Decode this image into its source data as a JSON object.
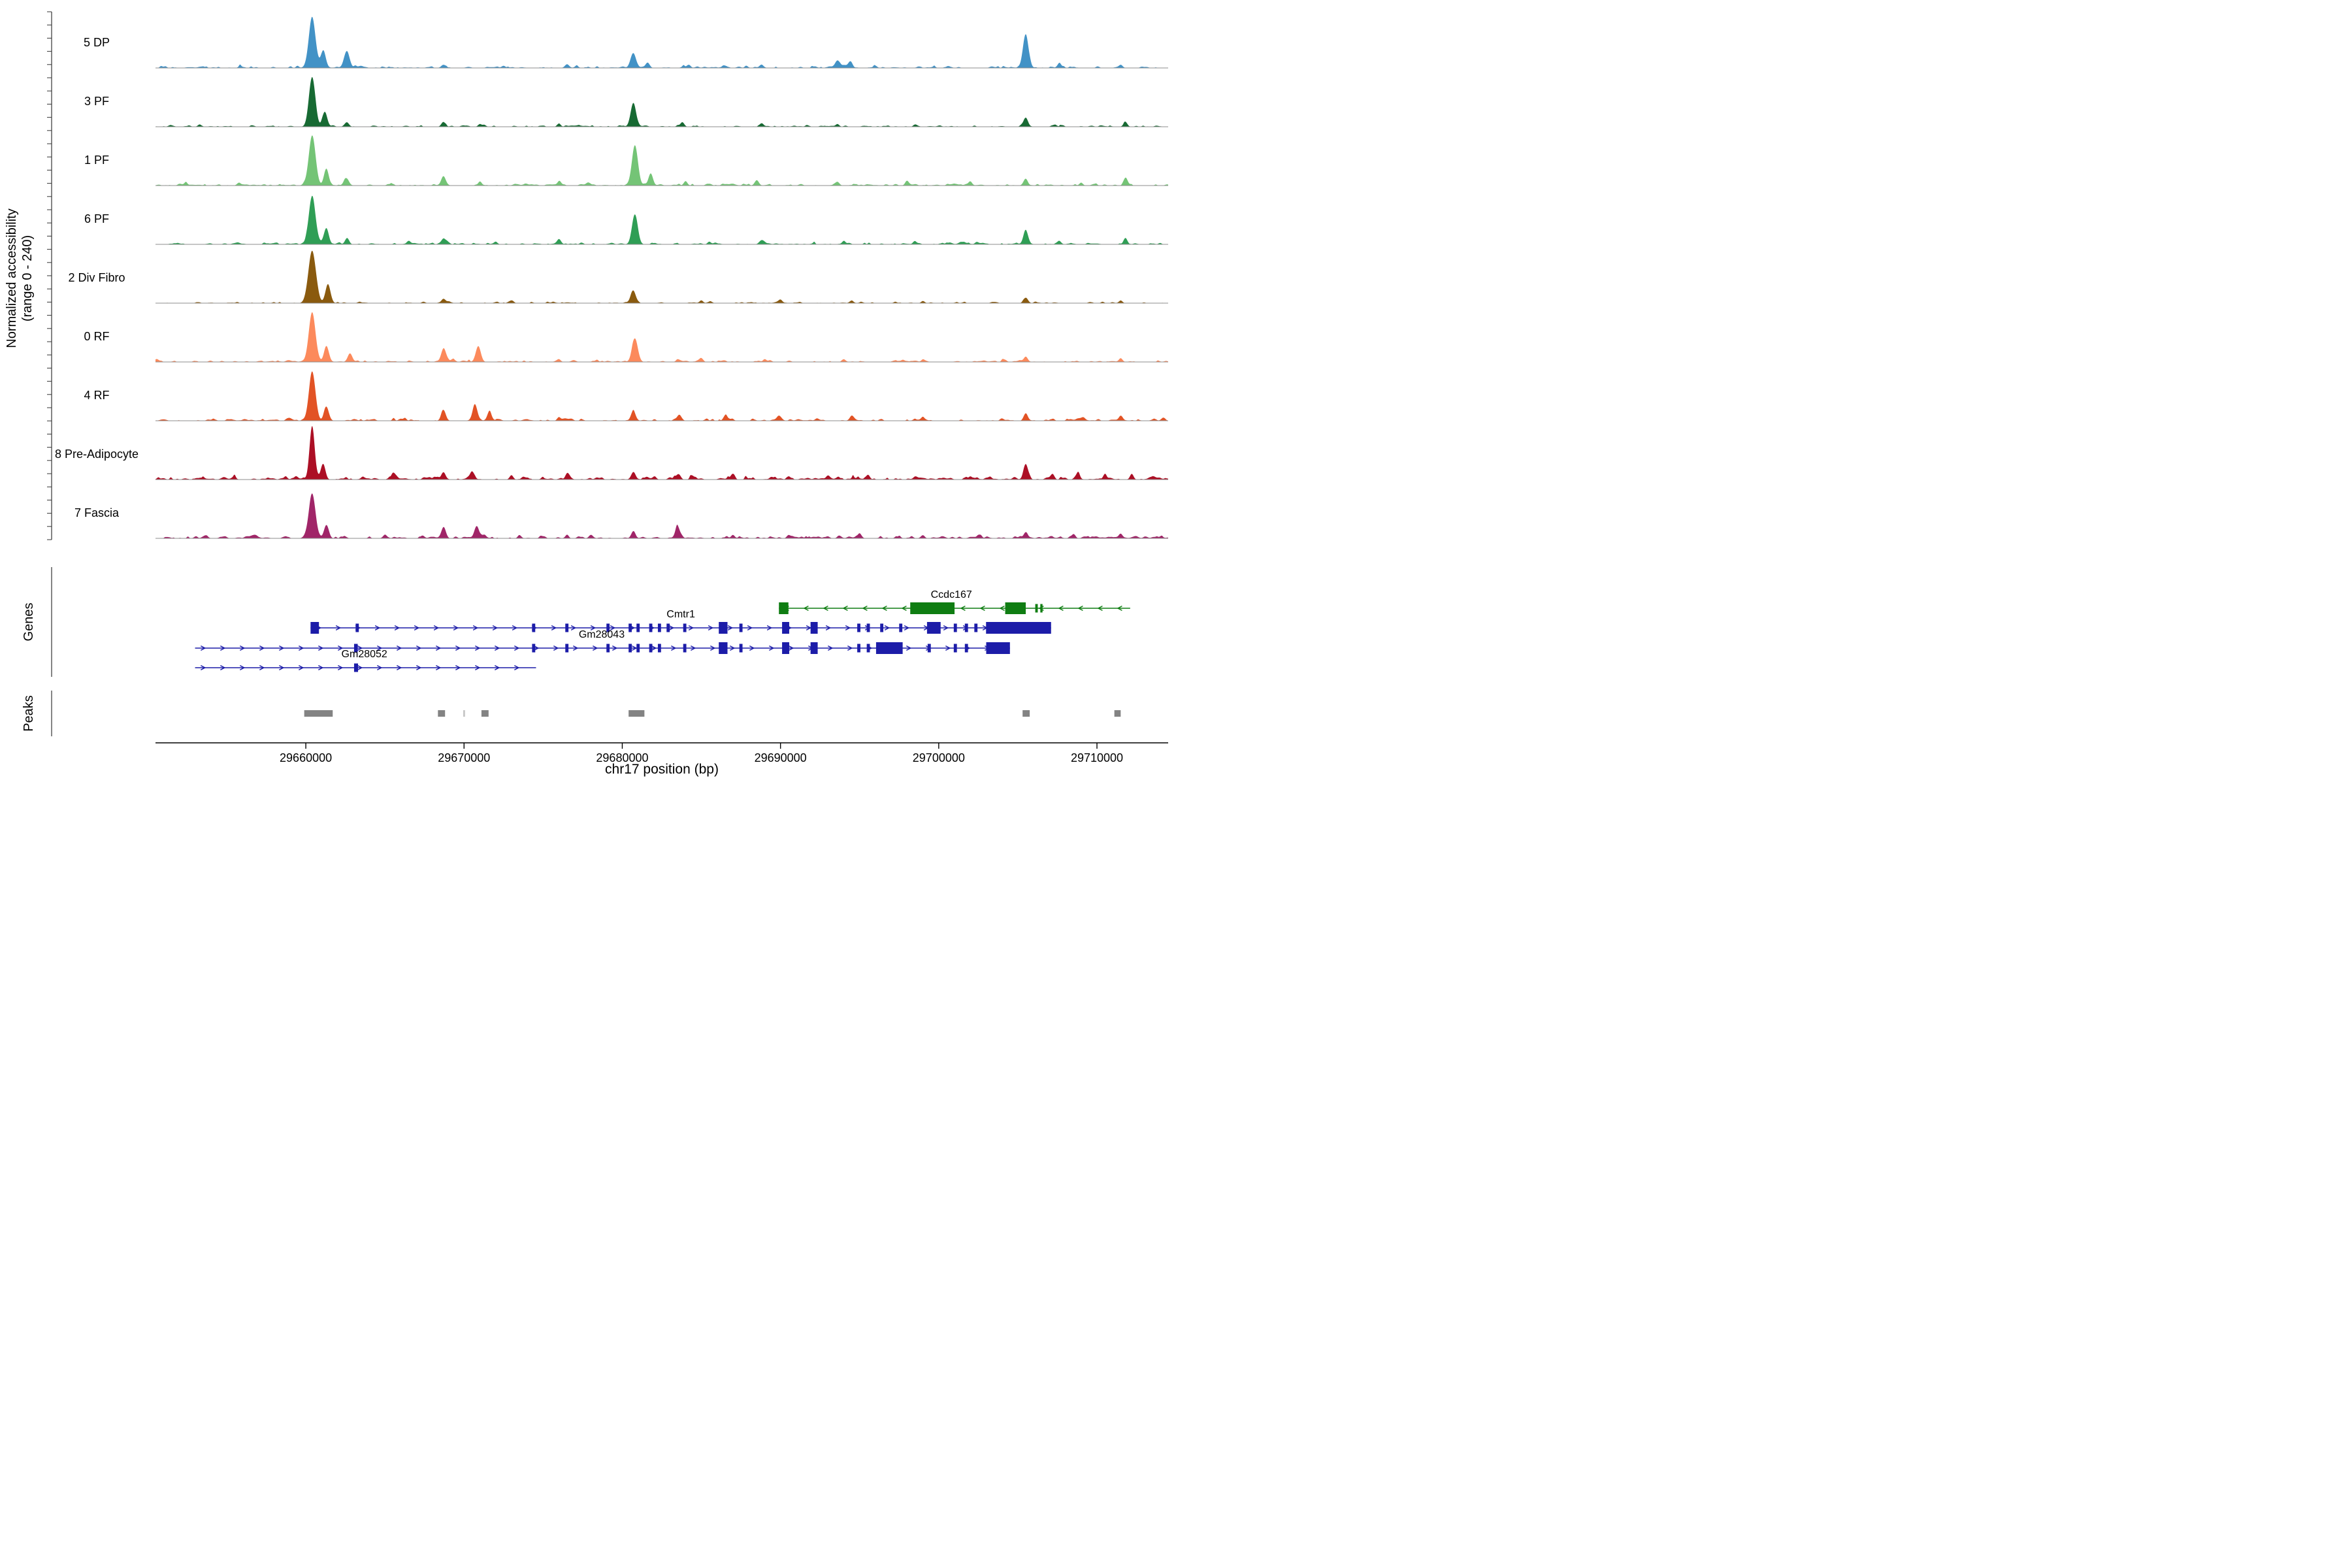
{
  "chart_data": {
    "type": "area",
    "subtype": "genome-coverage-tracks",
    "title": "",
    "xlabel": "chr17 position (bp)",
    "ylabel_line1": "Normalized accessibility",
    "ylabel_line2": "(range 0 - 240)",
    "y_range": [
      0,
      240
    ],
    "region": {
      "chrom": "chr17",
      "start_bp": 29650500,
      "end_bp": 29714500
    },
    "x_ticks": [
      {
        "bp": 29660000,
        "label": "29660000"
      },
      {
        "bp": 29670000,
        "label": "29670000"
      },
      {
        "bp": 29680000,
        "label": "29680000"
      },
      {
        "bp": 29690000,
        "label": "29690000"
      },
      {
        "bp": 29700000,
        "label": "29700000"
      },
      {
        "bp": 29710000,
        "label": "29710000"
      }
    ],
    "tracks": [
      {
        "label": "5 DP",
        "color": "#4292c6",
        "seed": 5,
        "noise_amp": 0.028,
        "noise_count": 240,
        "peaks": [
          [
            29660400,
            0.95,
            210
          ],
          [
            29661100,
            0.32,
            160
          ],
          [
            29662600,
            0.3,
            170
          ],
          [
            29668700,
            0.06,
            140
          ],
          [
            29672500,
            0.04,
            120
          ],
          [
            29676500,
            0.05,
            130
          ],
          [
            29680700,
            0.27,
            170
          ],
          [
            29681600,
            0.1,
            130
          ],
          [
            29684200,
            0.06,
            120
          ],
          [
            29688800,
            0.06,
            120
          ],
          [
            29693600,
            0.14,
            150
          ],
          [
            29694400,
            0.11,
            130
          ],
          [
            29696000,
            0.04,
            110
          ],
          [
            29705500,
            0.62,
            170
          ],
          [
            29707600,
            0.07,
            120
          ],
          [
            29711500,
            0.06,
            120
          ]
        ]
      },
      {
        "label": "3 PF",
        "color": "#176a33",
        "seed": 3,
        "noise_amp": 0.022,
        "noise_count": 220,
        "peaks": [
          [
            29660400,
            0.92,
            200
          ],
          [
            29661200,
            0.28,
            150
          ],
          [
            29662600,
            0.08,
            130
          ],
          [
            29668700,
            0.08,
            130
          ],
          [
            29671000,
            0.05,
            110
          ],
          [
            29676000,
            0.05,
            110
          ],
          [
            29680700,
            0.44,
            170
          ],
          [
            29683800,
            0.07,
            120
          ],
          [
            29688800,
            0.06,
            120
          ],
          [
            29693600,
            0.05,
            110
          ],
          [
            29698500,
            0.04,
            110
          ],
          [
            29705500,
            0.17,
            140
          ],
          [
            29711800,
            0.09,
            120
          ]
        ]
      },
      {
        "label": "1 PF",
        "color": "#74c476",
        "seed": 1,
        "noise_amp": 0.03,
        "noise_count": 250,
        "peaks": [
          [
            29660400,
            0.92,
            210
          ],
          [
            29661300,
            0.3,
            150
          ],
          [
            29662600,
            0.12,
            140
          ],
          [
            29668700,
            0.16,
            140
          ],
          [
            29671000,
            0.06,
            110
          ],
          [
            29676000,
            0.06,
            110
          ],
          [
            29680800,
            0.74,
            190
          ],
          [
            29681800,
            0.22,
            140
          ],
          [
            29684000,
            0.07,
            120
          ],
          [
            29688500,
            0.1,
            130
          ],
          [
            29693600,
            0.07,
            120
          ],
          [
            29698000,
            0.08,
            120
          ],
          [
            29702000,
            0.05,
            110
          ],
          [
            29705500,
            0.12,
            130
          ],
          [
            29709000,
            0.05,
            110
          ],
          [
            29711800,
            0.13,
            120
          ]
        ]
      },
      {
        "label": "6 PF",
        "color": "#2f9e55",
        "seed": 6,
        "noise_amp": 0.026,
        "noise_count": 240,
        "peaks": [
          [
            29660400,
            0.9,
            210
          ],
          [
            29661300,
            0.3,
            150
          ],
          [
            29662600,
            0.1,
            130
          ],
          [
            29666500,
            0.06,
            110
          ],
          [
            29668700,
            0.09,
            120
          ],
          [
            29672000,
            0.05,
            110
          ],
          [
            29676000,
            0.1,
            130
          ],
          [
            29680800,
            0.54,
            180
          ],
          [
            29685500,
            0.05,
            110
          ],
          [
            29688800,
            0.06,
            110
          ],
          [
            29694000,
            0.06,
            110
          ],
          [
            29698500,
            0.05,
            110
          ],
          [
            29705500,
            0.26,
            150
          ],
          [
            29707600,
            0.06,
            110
          ],
          [
            29711800,
            0.12,
            120
          ]
        ]
      },
      {
        "label": "2 Div Fibro",
        "color": "#8a5a0e",
        "seed": 2,
        "noise_amp": 0.018,
        "noise_count": 200,
        "peaks": [
          [
            29660400,
            0.97,
            240
          ],
          [
            29661400,
            0.35,
            160
          ],
          [
            29668700,
            0.08,
            130
          ],
          [
            29673000,
            0.04,
            110
          ],
          [
            29680700,
            0.22,
            160
          ],
          [
            29685000,
            0.05,
            110
          ],
          [
            29690000,
            0.06,
            115
          ],
          [
            29694500,
            0.05,
            110
          ],
          [
            29699000,
            0.04,
            110
          ],
          [
            29705500,
            0.1,
            130
          ],
          [
            29711500,
            0.05,
            110
          ]
        ]
      },
      {
        "label": "0 RF",
        "color": "#fc8a5c",
        "seed": 10,
        "noise_amp": 0.026,
        "noise_count": 240,
        "peaks": [
          [
            29660400,
            0.93,
            210
          ],
          [
            29661300,
            0.3,
            150
          ],
          [
            29662800,
            0.15,
            140
          ],
          [
            29668700,
            0.23,
            150
          ],
          [
            29670900,
            0.27,
            160
          ],
          [
            29676000,
            0.05,
            110
          ],
          [
            29680800,
            0.44,
            180
          ],
          [
            29685000,
            0.06,
            110
          ],
          [
            29689000,
            0.05,
            110
          ],
          [
            29694000,
            0.05,
            110
          ],
          [
            29699000,
            0.04,
            110
          ],
          [
            29705500,
            0.1,
            125
          ],
          [
            29711500,
            0.07,
            115
          ]
        ]
      },
      {
        "label": "4 RF",
        "color": "#e25325",
        "seed": 4,
        "noise_amp": 0.03,
        "noise_count": 260,
        "peaks": [
          [
            29660400,
            0.92,
            200
          ],
          [
            29661300,
            0.26,
            150
          ],
          [
            29668700,
            0.19,
            140
          ],
          [
            29670700,
            0.29,
            150
          ],
          [
            29671600,
            0.17,
            130
          ],
          [
            29676000,
            0.06,
            110
          ],
          [
            29680700,
            0.18,
            140
          ],
          [
            29683600,
            0.1,
            130
          ],
          [
            29686500,
            0.08,
            120
          ],
          [
            29690000,
            0.05,
            110
          ],
          [
            29694500,
            0.06,
            110
          ],
          [
            29699000,
            0.05,
            110
          ],
          [
            29705500,
            0.14,
            130
          ],
          [
            29711500,
            0.08,
            115
          ]
        ]
      },
      {
        "label": "8 Pre-Adipocyte",
        "color": "#ac0f25",
        "seed": 8,
        "noise_amp": 0.04,
        "noise_count": 340,
        "peaks": [
          [
            29660400,
            1.0,
            160
          ],
          [
            29661100,
            0.28,
            140
          ],
          [
            29665500,
            0.1,
            120
          ],
          [
            29668700,
            0.1,
            120
          ],
          [
            29670500,
            0.14,
            125
          ],
          [
            29673000,
            0.06,
            110
          ],
          [
            29676500,
            0.09,
            115
          ],
          [
            29680700,
            0.11,
            125
          ],
          [
            29683600,
            0.08,
            115
          ],
          [
            29687000,
            0.06,
            110
          ],
          [
            29690500,
            0.05,
            110
          ],
          [
            29693000,
            0.06,
            110
          ],
          [
            29695500,
            0.08,
            115
          ],
          [
            29698500,
            0.05,
            105
          ],
          [
            29702000,
            0.06,
            110
          ],
          [
            29705500,
            0.29,
            140
          ],
          [
            29707200,
            0.1,
            115
          ],
          [
            29708800,
            0.1,
            110
          ],
          [
            29710500,
            0.1,
            110
          ],
          [
            29712200,
            0.1,
            110
          ]
        ]
      },
      {
        "label": "7 Fascia",
        "color": "#a02568",
        "seed": 7,
        "noise_amp": 0.036,
        "noise_count": 320,
        "peaks": [
          [
            29660400,
            0.82,
            210
          ],
          [
            29661300,
            0.25,
            150
          ],
          [
            29665000,
            0.06,
            110
          ],
          [
            29668700,
            0.18,
            140
          ],
          [
            29670800,
            0.23,
            150
          ],
          [
            29673500,
            0.05,
            110
          ],
          [
            29676500,
            0.06,
            110
          ],
          [
            29680700,
            0.13,
            130
          ],
          [
            29683500,
            0.19,
            150
          ],
          [
            29687000,
            0.06,
            110
          ],
          [
            29690500,
            0.05,
            110
          ],
          [
            29695000,
            0.06,
            110
          ],
          [
            29699000,
            0.05,
            110
          ],
          [
            29702500,
            0.05,
            110
          ],
          [
            29705500,
            0.11,
            125
          ],
          [
            29708500,
            0.06,
            110
          ],
          [
            29711500,
            0.08,
            115
          ]
        ]
      }
    ],
    "genes": {
      "label": "Genes",
      "items": [
        {
          "name": "Ccdc167",
          "color": "#0f7d12",
          "strand": "-",
          "row": 0,
          "start": 29689900,
          "end": 29712100,
          "label_bp": 29700800,
          "exons": [
            [
              29689900,
              29690500
            ],
            [
              29698200,
              29701000
            ],
            [
              29704200,
              29705500
            ],
            [
              29706100,
              29706260
            ],
            [
              29706420,
              29706560
            ]
          ]
        },
        {
          "name": "Cmtr1",
          "color": "#1c1ca8",
          "strand": "+",
          "row": 1,
          "start": 29660300,
          "end": 29707100,
          "label_bp": 29683700,
          "exons": [
            [
              29660300,
              29660830
            ],
            [
              29663150,
              29663350
            ],
            [
              29674300,
              29674500
            ],
            [
              29676400,
              29676600
            ],
            [
              29679000,
              29679200
            ],
            [
              29680400,
              29680600
            ],
            [
              29680900,
              29681100
            ],
            [
              29681700,
              29681900
            ],
            [
              29682250,
              29682450
            ],
            [
              29682800,
              29683000
            ],
            [
              29683850,
              29684050
            ],
            [
              29686100,
              29686650
            ],
            [
              29687400,
              29687600
            ],
            [
              29690100,
              29690550
            ],
            [
              29691900,
              29692350
            ],
            [
              29694850,
              29695050
            ],
            [
              29695450,
              29695650
            ],
            [
              29696300,
              29696500
            ],
            [
              29697500,
              29697700
            ],
            [
              29699260,
              29700120
            ],
            [
              29700950,
              29701150
            ],
            [
              29701650,
              29701850
            ],
            [
              29702250,
              29702450
            ],
            [
              29702990,
              29707100
            ]
          ]
        },
        {
          "name": "Gm28043",
          "color": "#1c1ca8",
          "strand": "+",
          "row": 2,
          "start": 29653000,
          "end": 29704500,
          "label_bp": 29678700,
          "exons": [
            [
              29663050,
              29663280
            ],
            [
              29674300,
              29674500
            ],
            [
              29676400,
              29676600
            ],
            [
              29679000,
              29679200
            ],
            [
              29680400,
              29680600
            ],
            [
              29680900,
              29681100
            ],
            [
              29681700,
              29681900
            ],
            [
              29682250,
              29682450
            ],
            [
              29683850,
              29684050
            ],
            [
              29686100,
              29686650
            ],
            [
              29687400,
              29687600
            ],
            [
              29690100,
              29690550
            ],
            [
              29691900,
              29692350
            ],
            [
              29694850,
              29695050
            ],
            [
              29695450,
              29695650
            ],
            [
              29696040,
              29697720
            ],
            [
              29699300,
              29699500
            ],
            [
              29700950,
              29701150
            ],
            [
              29701650,
              29701850
            ],
            [
              29703000,
              29704500
            ]
          ]
        },
        {
          "name": "Gm28052",
          "color": "#1c1ca8",
          "strand": "+",
          "row": 3,
          "start": 29653000,
          "end": 29674550,
          "label_bp": 29663700,
          "exons": [
            [
              29663050,
              29663300
            ]
          ]
        }
      ]
    },
    "peaks": {
      "label": "Peaks",
      "color": "#838383",
      "regions": [
        {
          "start": 29659900,
          "end": 29661700
        },
        {
          "start": 29668350,
          "end": 29668800
        },
        {
          "start": 29669950,
          "end": 29670060,
          "color": "#c4c4c4"
        },
        {
          "start": 29671100,
          "end": 29671550
        },
        {
          "start": 29680400,
          "end": 29681400
        },
        {
          "start": 29705300,
          "end": 29705750
        },
        {
          "start": 29711100,
          "end": 29711500
        }
      ]
    }
  }
}
